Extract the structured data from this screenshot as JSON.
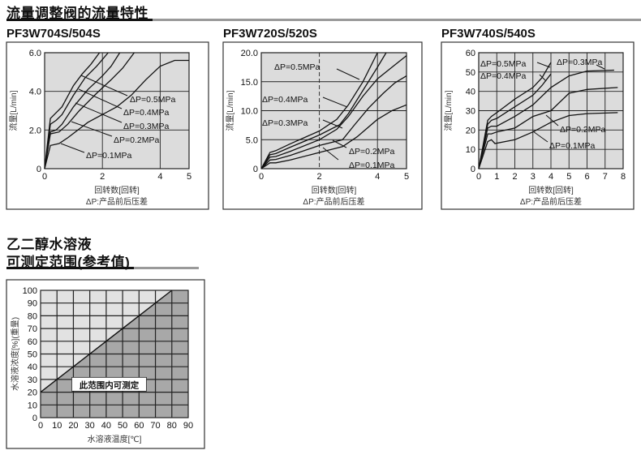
{
  "section1": {
    "title": "流量调整阀的流量特性"
  },
  "section2": {
    "title_line1": "乙二醇水溶液",
    "title_line2": "可测定范围(参考值)"
  },
  "colors": {
    "plot_bg": "#dcdcdc",
    "region_dark": "#a8a8a8",
    "region_light": "#e2e2e2",
    "line": "#111111"
  },
  "chart_data": [
    {
      "type": "line",
      "title": "PF3W704S/504S",
      "ylabel": "流量[L/min]",
      "xlabel": "回转数[回转]",
      "note": "ΔP:产品前后压差",
      "xlim": [
        0,
        5
      ],
      "ylim": [
        0,
        6
      ],
      "xticks": [
        0,
        2,
        4,
        5
      ],
      "xtick_labels": [
        "0",
        "2",
        "4",
        "5"
      ],
      "yticks": [
        0,
        2,
        4,
        6
      ],
      "ytick_labels": [
        "0",
        "2.0",
        "4.0",
        "6.0"
      ],
      "grid": true,
      "series": [
        {
          "name": "ΔP=0.5MPa",
          "points": [
            [
              0,
              0
            ],
            [
              0.2,
              2.6
            ],
            [
              0.4,
              2.9
            ],
            [
              0.6,
              3.2
            ],
            [
              1,
              4.3
            ],
            [
              1.3,
              4.9
            ],
            [
              1.6,
              5.4
            ],
            [
              1.9,
              6.0
            ]
          ]
        },
        {
          "name": "ΔP=0.4MPa",
          "points": [
            [
              0,
              0
            ],
            [
              0.2,
              2.3
            ],
            [
              0.4,
              2.5
            ],
            [
              0.6,
              2.8
            ],
            [
              1,
              3.8
            ],
            [
              1.4,
              4.7
            ],
            [
              1.8,
              5.3
            ],
            [
              2.2,
              6.0
            ]
          ]
        },
        {
          "name": "ΔP=0.3MPa",
          "points": [
            [
              0,
              0
            ],
            [
              0.2,
              1.9
            ],
            [
              0.4,
              2.0
            ],
            [
              0.6,
              2.3
            ],
            [
              1,
              3.2
            ],
            [
              1.5,
              4.1
            ],
            [
              2,
              4.8
            ],
            [
              2.3,
              5.3
            ],
            [
              2.6,
              6.0
            ]
          ]
        },
        {
          "name": "ΔP=0.2MPa",
          "points": [
            [
              0,
              0
            ],
            [
              0.2,
              1.8
            ],
            [
              0.5,
              1.9
            ],
            [
              0.8,
              2.3
            ],
            [
              1.2,
              3.0
            ],
            [
              1.8,
              3.9
            ],
            [
              2.3,
              4.6
            ],
            [
              2.7,
              5.2
            ],
            [
              3.1,
              6.0
            ]
          ]
        },
        {
          "name": "ΔP=0.1MPa",
          "points": [
            [
              0,
              0
            ],
            [
              0.2,
              1.2
            ],
            [
              0.5,
              1.3
            ],
            [
              0.8,
              1.6
            ],
            [
              1.5,
              2.4
            ],
            [
              2.5,
              3.2
            ],
            [
              3,
              3.8
            ],
            [
              3.5,
              4.6
            ],
            [
              4,
              5.3
            ],
            [
              4.5,
              5.6
            ],
            [
              5,
              5.6
            ]
          ]
        }
      ]
    },
    {
      "type": "line",
      "title": "PF3W720S/520S",
      "ylabel": "流量[L/min]",
      "xlabel": "回转数[回转]",
      "note": "ΔP:产品前后压差",
      "xlim": [
        0,
        5
      ],
      "ylim": [
        0,
        20
      ],
      "xticks": [
        0,
        2,
        4,
        5
      ],
      "xtick_labels": [
        "0",
        "2",
        "4",
        "5"
      ],
      "yticks": [
        0,
        5,
        10,
        15,
        20
      ],
      "ytick_labels": [
        "0",
        "5.0",
        "10.0",
        "15.0",
        "20.0"
      ],
      "grid": true,
      "series": [
        {
          "name": "ΔP=0.5MPa",
          "points": [
            [
              0,
              0
            ],
            [
              0.3,
              2.8
            ],
            [
              0.5,
              3.1
            ],
            [
              1,
              4.3
            ],
            [
              2,
              6.5
            ],
            [
              2.6,
              8.5
            ],
            [
              3,
              11
            ],
            [
              3.5,
              15
            ],
            [
              4,
              20
            ]
          ]
        },
        {
          "name": "ΔP=0.4MPa",
          "points": [
            [
              0,
              0
            ],
            [
              0.3,
              2.4
            ],
            [
              0.5,
              2.6
            ],
            [
              1,
              3.7
            ],
            [
              2,
              5.8
            ],
            [
              2.7,
              7.6
            ],
            [
              3,
              9.5
            ],
            [
              3.5,
              13.5
            ],
            [
              4,
              17.5
            ],
            [
              4.3,
              20
            ]
          ]
        },
        {
          "name": "ΔP=0.3MPa",
          "points": [
            [
              0,
              0
            ],
            [
              0.3,
              2.0
            ],
            [
              0.5,
              2.1
            ],
            [
              1,
              3.0
            ],
            [
              2,
              5.0
            ],
            [
              2.6,
              6.8
            ],
            [
              3,
              9
            ],
            [
              3.5,
              12.5
            ],
            [
              4,
              15.5
            ],
            [
              4.5,
              17.5
            ],
            [
              5,
              19.5
            ]
          ]
        },
        {
          "name": "ΔP=0.2MPa",
          "points": [
            [
              0,
              0
            ],
            [
              0.3,
              1.5
            ],
            [
              0.5,
              1.6
            ],
            [
              1,
              2.3
            ],
            [
              2,
              4.0
            ],
            [
              2.8,
              5
            ],
            [
              3.2,
              7.5
            ],
            [
              3.7,
              10.5
            ],
            [
              4.2,
              13
            ],
            [
              4.6,
              14.8
            ],
            [
              5,
              16
            ]
          ]
        },
        {
          "name": "ΔP=0.1MPa",
          "points": [
            [
              0,
              0
            ],
            [
              0.3,
              1.0
            ],
            [
              0.5,
              1.0
            ],
            [
              1,
              1.5
            ],
            [
              2,
              2.8
            ],
            [
              2.8,
              3.8
            ],
            [
              3.3,
              5.5
            ],
            [
              4,
              8.5
            ],
            [
              4.5,
              10
            ],
            [
              5,
              11
            ]
          ]
        }
      ]
    },
    {
      "type": "line",
      "title": "PF3W740S/540S",
      "ylabel": "流量[L/min]",
      "xlabel": "回转数[回转]",
      "note": "ΔP:产品前后压差",
      "xlim": [
        0,
        8
      ],
      "ylim": [
        0,
        60
      ],
      "xticks": [
        0,
        1,
        2,
        3,
        4,
        5,
        6,
        7,
        8
      ],
      "xtick_labels": [
        "0",
        "1",
        "2",
        "3",
        "4",
        "5",
        "6",
        "7",
        "8"
      ],
      "yticks": [
        0,
        10,
        20,
        30,
        40,
        50,
        60
      ],
      "ytick_labels": [
        "0",
        "10",
        "20",
        "30",
        "40",
        "50",
        "60"
      ],
      "grid": true,
      "series": [
        {
          "name": "ΔP=0.5MPa",
          "points": [
            [
              0,
              0
            ],
            [
              0.5,
              25
            ],
            [
              0.7,
              27
            ],
            [
              1,
              29
            ],
            [
              2,
              36
            ],
            [
              3,
              42
            ],
            [
              3.5,
              47
            ],
            [
              4,
              55
            ]
          ]
        },
        {
          "name": "ΔP=0.4MPa",
          "points": [
            [
              0,
              0
            ],
            [
              0.5,
              23
            ],
            [
              0.7,
              25
            ],
            [
              1,
              26
            ],
            [
              2,
              32
            ],
            [
              3,
              38
            ],
            [
              3.5,
              43
            ],
            [
              4,
              49
            ]
          ]
        },
        {
          "name": "ΔP=0.3MPa",
          "points": [
            [
              0,
              0
            ],
            [
              0.5,
              21
            ],
            [
              0.7,
              22
            ],
            [
              1,
              22
            ],
            [
              2,
              27
            ],
            [
              3,
              33
            ],
            [
              4,
              42
            ],
            [
              5,
              48
            ],
            [
              6,
              50.5
            ],
            [
              7.5,
              51
            ]
          ]
        },
        {
          "name": "ΔP=0.2MPa",
          "points": [
            [
              0,
              0
            ],
            [
              0.5,
              18
            ],
            [
              0.7,
              18
            ],
            [
              1,
              19
            ],
            [
              2,
              21
            ],
            [
              3,
              27
            ],
            [
              4,
              30
            ],
            [
              5,
              39
            ],
            [
              6,
              41
            ],
            [
              7.7,
              42
            ]
          ]
        },
        {
          "name": "ΔP=0.1MPa",
          "points": [
            [
              0,
              0
            ],
            [
              0.5,
              14
            ],
            [
              0.7,
              15
            ],
            [
              0.9,
              13
            ],
            [
              2,
              15
            ],
            [
              3,
              19
            ],
            [
              4,
              24
            ],
            [
              5,
              27.5
            ],
            [
              6,
              28.5
            ],
            [
              7.7,
              29
            ]
          ]
        }
      ]
    },
    {
      "type": "area",
      "title": "",
      "ylabel": "水溶液浓度[%](重量)",
      "xlabel": "水溶液温度[℃]",
      "xlim": [
        0,
        90
      ],
      "ylim": [
        0,
        100
      ],
      "xticks": [
        0,
        10,
        20,
        30,
        40,
        50,
        60,
        70,
        80,
        90
      ],
      "xtick_labels": [
        "0",
        "10",
        "20",
        "30",
        "40",
        "50",
        "60",
        "70",
        "80",
        "90"
      ],
      "yticks": [
        0,
        10,
        20,
        30,
        40,
        50,
        60,
        70,
        80,
        90,
        100
      ],
      "ytick_labels": [
        "0",
        "10",
        "20",
        "30",
        "40",
        "50",
        "60",
        "70",
        "80",
        "90",
        "100"
      ],
      "grid": true,
      "boundary": [
        [
          0,
          20
        ],
        [
          80,
          100
        ],
        [
          90,
          100
        ]
      ],
      "region_label": "此范围内可测定"
    }
  ]
}
